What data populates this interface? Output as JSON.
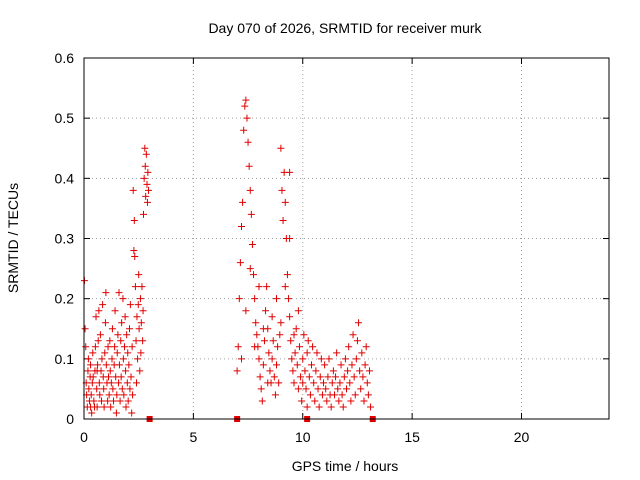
{
  "chart_data": {
    "type": "scatter",
    "title": "Day 070 of 2026, SRMTID for receiver murk",
    "xlabel": "GPS time / hours",
    "ylabel": "SRMTID / TECUs",
    "xlim": [
      0,
      24
    ],
    "ylim": [
      0,
      0.6
    ],
    "x_ticks": [
      0,
      5,
      10,
      15,
      20
    ],
    "y_ticks": [
      0,
      0.1,
      0.2,
      0.3,
      0.4,
      0.5,
      0.6
    ],
    "x_tick_labels": [
      "0",
      "5",
      "10",
      "15",
      "20"
    ],
    "y_tick_labels": [
      "0",
      "0.1",
      "0.2",
      "0.3",
      "0.4",
      "0.5",
      "0.6"
    ],
    "grid": true,
    "marker_color": "#e00000",
    "series": [
      {
        "marker": "plus",
        "points": [
          [
            0.02,
            0.23
          ],
          [
            0.05,
            0.15
          ],
          [
            0.08,
            0.12
          ],
          [
            0.1,
            0.06
          ],
          [
            0.12,
            0.04
          ],
          [
            0.15,
            0.02
          ],
          [
            0.18,
            0.08
          ],
          [
            0.2,
            0.1
          ],
          [
            0.22,
            0.05
          ],
          [
            0.25,
            0.03
          ],
          [
            0.28,
            0.07
          ],
          [
            0.3,
            0.09
          ],
          [
            0.33,
            0.04
          ],
          [
            0.35,
            0.01
          ],
          [
            0.38,
            0.06
          ],
          [
            0.4,
            0.11
          ],
          [
            0.42,
            0.07
          ],
          [
            0.45,
            0.03
          ],
          [
            0.48,
            0.02
          ],
          [
            0.5,
            0.08
          ],
          [
            0.52,
            0.12
          ],
          [
            0.55,
            0.17
          ],
          [
            0.58,
            0.05
          ],
          [
            0.6,
            0.02
          ],
          [
            0.62,
            0.09
          ],
          [
            0.65,
            0.13
          ],
          [
            0.68,
            0.18
          ],
          [
            0.7,
            0.06
          ],
          [
            0.72,
            0.04
          ],
          [
            0.75,
            0.14
          ],
          [
            0.78,
            0.08
          ],
          [
            0.8,
            0.03
          ],
          [
            0.82,
            0.1
          ],
          [
            0.85,
            0.19
          ],
          [
            0.88,
            0.07
          ],
          [
            0.9,
            0.05
          ],
          [
            0.92,
            0.02
          ],
          [
            0.95,
            0.11
          ],
          [
            0.98,
            0.16
          ],
          [
            1.0,
            0.21
          ],
          [
            1.02,
            0.09
          ],
          [
            1.05,
            0.06
          ],
          [
            1.08,
            0.03
          ],
          [
            1.1,
            0.12
          ],
          [
            1.12,
            0.07
          ],
          [
            1.15,
            0.04
          ],
          [
            1.18,
            0.13
          ],
          [
            1.2,
            0.08
          ],
          [
            1.22,
            0.02
          ],
          [
            1.25,
            0.06
          ],
          [
            1.28,
            0.1
          ],
          [
            1.3,
            0.15
          ],
          [
            1.32,
            0.05
          ],
          [
            1.35,
            0.03
          ],
          [
            1.38,
            0.09
          ],
          [
            1.4,
            0.12
          ],
          [
            1.42,
            0.18
          ],
          [
            1.45,
            0.07
          ],
          [
            1.48,
            0.01
          ],
          [
            1.5,
            0.04
          ],
          [
            1.52,
            0.11
          ],
          [
            1.55,
            0.14
          ],
          [
            1.58,
            0.06
          ],
          [
            1.6,
            0.21
          ],
          [
            1.62,
            0.09
          ],
          [
            1.65,
            0.03
          ],
          [
            1.68,
            0.13
          ],
          [
            1.7,
            0.07
          ],
          [
            1.72,
            0.16
          ],
          [
            1.75,
            0.05
          ],
          [
            1.78,
            0.2
          ],
          [
            1.8,
            0.1
          ],
          [
            1.82,
            0.04
          ],
          [
            1.85,
            0.12
          ],
          [
            1.88,
            0.17
          ],
          [
            1.9,
            0.08
          ],
          [
            1.92,
            0.02
          ],
          [
            1.95,
            0.14
          ],
          [
            1.98,
            0.06
          ],
          [
            2.0,
            0.11
          ],
          [
            2.02,
            0.03
          ],
          [
            2.05,
            0.09
          ],
          [
            2.08,
            0.15
          ],
          [
            2.1,
            0.05
          ],
          [
            2.12,
            0.19
          ],
          [
            2.15,
            0.07
          ],
          [
            2.18,
            0.01
          ],
          [
            2.2,
            0.12
          ],
          [
            2.22,
            0.04
          ],
          [
            2.25,
            0.38
          ],
          [
            2.28,
            0.28
          ],
          [
            2.3,
            0.33
          ],
          [
            2.32,
            0.27
          ],
          [
            2.35,
            0.22
          ],
          [
            2.38,
            0.13
          ],
          [
            2.4,
            0.06
          ],
          [
            2.42,
            0.17
          ],
          [
            2.45,
            0.1
          ],
          [
            2.48,
            0.19
          ],
          [
            2.5,
            0.24
          ],
          [
            2.52,
            0.15
          ],
          [
            2.55,
            0.08
          ],
          [
            2.58,
            0.2
          ],
          [
            2.6,
            0.11
          ],
          [
            2.62,
            0.16
          ],
          [
            2.65,
            0.22
          ],
          [
            2.68,
            0.13
          ],
          [
            2.7,
            0.18
          ],
          [
            2.72,
            0.34
          ],
          [
            2.75,
            0.4
          ],
          [
            2.78,
            0.45
          ],
          [
            2.8,
            0.42
          ],
          [
            2.82,
            0.37
          ],
          [
            2.85,
            0.44
          ],
          [
            2.88,
            0.39
          ],
          [
            2.9,
            0.36
          ],
          [
            2.92,
            0.41
          ],
          [
            2.95,
            0.38
          ],
          [
            0.3,
            0.02
          ],
          [
            0.6,
            0.08
          ],
          [
            7.0,
            0.08
          ],
          [
            7.05,
            0.12
          ],
          [
            7.1,
            0.2
          ],
          [
            7.15,
            0.26
          ],
          [
            7.2,
            0.32
          ],
          [
            7.25,
            0.36
          ],
          [
            7.3,
            0.48
          ],
          [
            7.35,
            0.52
          ],
          [
            7.4,
            0.53
          ],
          [
            7.45,
            0.5
          ],
          [
            7.5,
            0.46
          ],
          [
            7.55,
            0.42
          ],
          [
            7.6,
            0.38
          ],
          [
            7.65,
            0.34
          ],
          [
            7.7,
            0.29
          ],
          [
            7.75,
            0.24
          ],
          [
            7.8,
            0.2
          ],
          [
            7.85,
            0.16
          ],
          [
            7.9,
            0.14
          ],
          [
            7.95,
            0.12
          ],
          [
            8.0,
            0.1
          ],
          [
            8.05,
            0.07
          ],
          [
            8.1,
            0.05
          ],
          [
            8.15,
            0.03
          ],
          [
            8.2,
            0.09
          ],
          [
            8.25,
            0.13
          ],
          [
            8.3,
            0.18
          ],
          [
            8.35,
            0.22
          ],
          [
            8.4,
            0.15
          ],
          [
            8.45,
            0.11
          ],
          [
            8.5,
            0.08
          ],
          [
            8.55,
            0.06
          ],
          [
            8.6,
            0.1
          ],
          [
            8.65,
            0.13
          ],
          [
            8.7,
            0.07
          ],
          [
            8.75,
            0.04
          ],
          [
            8.8,
            0.09
          ],
          [
            8.85,
            0.12
          ],
          [
            8.9,
            0.06
          ],
          [
            8.95,
            0.14
          ],
          [
            9.0,
            0.45
          ],
          [
            9.05,
            0.38
          ],
          [
            9.1,
            0.33
          ],
          [
            9.15,
            0.41
          ],
          [
            9.2,
            0.36
          ],
          [
            9.25,
            0.3
          ],
          [
            9.3,
            0.24
          ],
          [
            9.35,
            0.2
          ],
          [
            9.4,
            0.17
          ],
          [
            9.45,
            0.13
          ],
          [
            9.5,
            0.1
          ],
          [
            9.55,
            0.08
          ],
          [
            9.6,
            0.06
          ],
          [
            9.65,
            0.11
          ],
          [
            9.7,
            0.15
          ],
          [
            9.75,
            0.09
          ],
          [
            9.8,
            0.05
          ],
          [
            9.85,
            0.12
          ],
          [
            9.9,
            0.07
          ],
          [
            9.95,
            0.03
          ],
          [
            10.0,
            0.1
          ],
          [
            10.05,
            0.14
          ],
          [
            10.1,
            0.08
          ],
          [
            10.15,
            0.05
          ],
          [
            10.2,
            0.11
          ],
          [
            10.25,
            0.13
          ],
          [
            10.3,
            0.07
          ],
          [
            10.35,
            0.04
          ],
          [
            10.4,
            0.09
          ],
          [
            10.45,
            0.12
          ],
          [
            10.5,
            0.06
          ],
          [
            10.55,
            0.03
          ],
          [
            10.6,
            0.08
          ],
          [
            10.65,
            0.11
          ],
          [
            10.7,
            0.05
          ],
          [
            10.75,
            0.02
          ],
          [
            10.8,
            0.07
          ],
          [
            10.85,
            0.1
          ],
          [
            10.9,
            0.04
          ],
          [
            10.95,
            0.06
          ],
          [
            11.0,
            0.09
          ],
          [
            11.05,
            0.05
          ],
          [
            11.1,
            0.03
          ],
          [
            11.15,
            0.07
          ],
          [
            11.2,
            0.1
          ],
          [
            11.25,
            0.04
          ],
          [
            11.3,
            0.02
          ],
          [
            11.35,
            0.06
          ],
          [
            11.4,
            0.08
          ],
          [
            11.45,
            0.04
          ],
          [
            11.5,
            0.07
          ],
          [
            11.55,
            0.11
          ],
          [
            11.6,
            0.05
          ],
          [
            11.65,
            0.03
          ],
          [
            11.7,
            0.06
          ],
          [
            11.75,
            0.09
          ],
          [
            11.8,
            0.04
          ],
          [
            11.85,
            0.02
          ],
          [
            11.9,
            0.07
          ],
          [
            11.95,
            0.1
          ],
          [
            12.0,
            0.05
          ],
          [
            12.05,
            0.08
          ],
          [
            12.1,
            0.12
          ],
          [
            12.15,
            0.06
          ],
          [
            12.2,
            0.03
          ],
          [
            12.25,
            0.09
          ],
          [
            12.3,
            0.14
          ],
          [
            12.35,
            0.07
          ],
          [
            12.4,
            0.04
          ],
          [
            12.45,
            0.1
          ],
          [
            12.5,
            0.13
          ],
          [
            12.55,
            0.16
          ],
          [
            12.6,
            0.08
          ],
          [
            12.65,
            0.05
          ],
          [
            12.7,
            0.11
          ],
          [
            12.75,
            0.07
          ],
          [
            12.8,
            0.03
          ],
          [
            12.85,
            0.09
          ],
          [
            12.9,
            0.12
          ],
          [
            12.95,
            0.06
          ],
          [
            13.0,
            0.04
          ],
          [
            13.05,
            0.08
          ],
          [
            13.1,
            0.02
          ],
          [
            7.2,
            0.1
          ],
          [
            7.4,
            0.18
          ],
          [
            7.6,
            0.25
          ],
          [
            7.8,
            0.12
          ],
          [
            8.0,
            0.22
          ],
          [
            8.2,
            0.15
          ],
          [
            8.4,
            0.06
          ],
          [
            8.6,
            0.17
          ],
          [
            8.8,
            0.2
          ],
          [
            9.0,
            0.16
          ],
          [
            9.2,
            0.22
          ],
          [
            9.4,
            0.3
          ],
          [
            9.6,
            0.14
          ],
          [
            9.8,
            0.18
          ],
          [
            10.0,
            0.06
          ],
          [
            10.2,
            0.02
          ],
          [
            9.4,
            0.41
          ]
        ]
      },
      {
        "marker": "square",
        "points": [
          [
            3.0,
            0.0
          ],
          [
            7.0,
            0.0
          ],
          [
            10.2,
            0.0
          ],
          [
            13.2,
            0.0
          ]
        ]
      }
    ]
  }
}
